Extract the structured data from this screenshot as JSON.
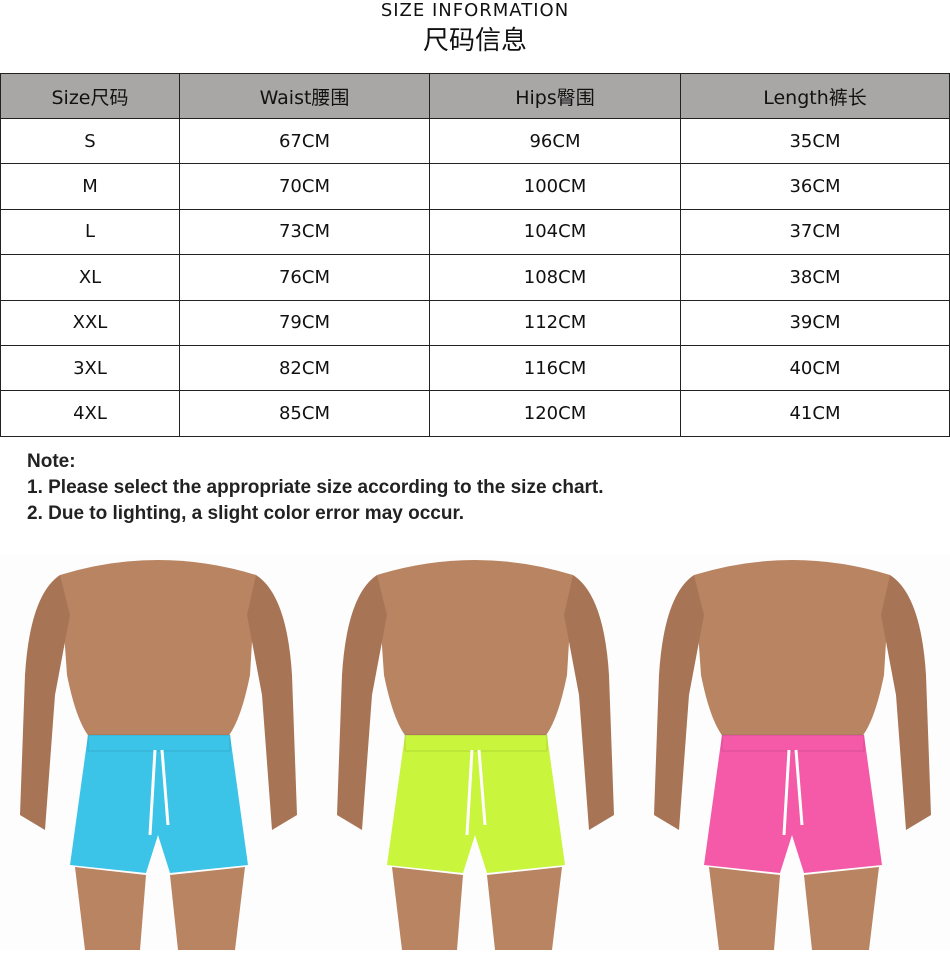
{
  "title_en": "SIZE INFORMATION",
  "title_zh": "尺码信息",
  "table": {
    "headers": [
      "Size尺码",
      "Waist腰围",
      "Hips臀围",
      "Length裤长"
    ],
    "rows": [
      [
        "S",
        "67CM",
        "96CM",
        "35CM"
      ],
      [
        "M",
        "70CM",
        "100CM",
        "36CM"
      ],
      [
        "L",
        "73CM",
        "104CM",
        "37CM"
      ],
      [
        "XL",
        "76CM",
        "108CM",
        "38CM"
      ],
      [
        "XXL",
        "79CM",
        "112CM",
        "39CM"
      ],
      [
        "3XL",
        "82CM",
        "116CM",
        "40CM"
      ],
      [
        "4XL",
        "85CM",
        "120CM",
        "41CM"
      ]
    ]
  },
  "note": {
    "heading": "Note:",
    "lines": [
      "1. Please select the appropriate size according to the size chart.",
      "2. Due to lighting, a slight color error may occur."
    ]
  },
  "photos": [
    {
      "shorts_color": "#3cc4e8"
    },
    {
      "shorts_color": "#c9f53c"
    },
    {
      "shorts_color": "#f45aa8"
    }
  ],
  "colors": {
    "header_bg": "#a9a6a6",
    "skin": "#b98462"
  }
}
